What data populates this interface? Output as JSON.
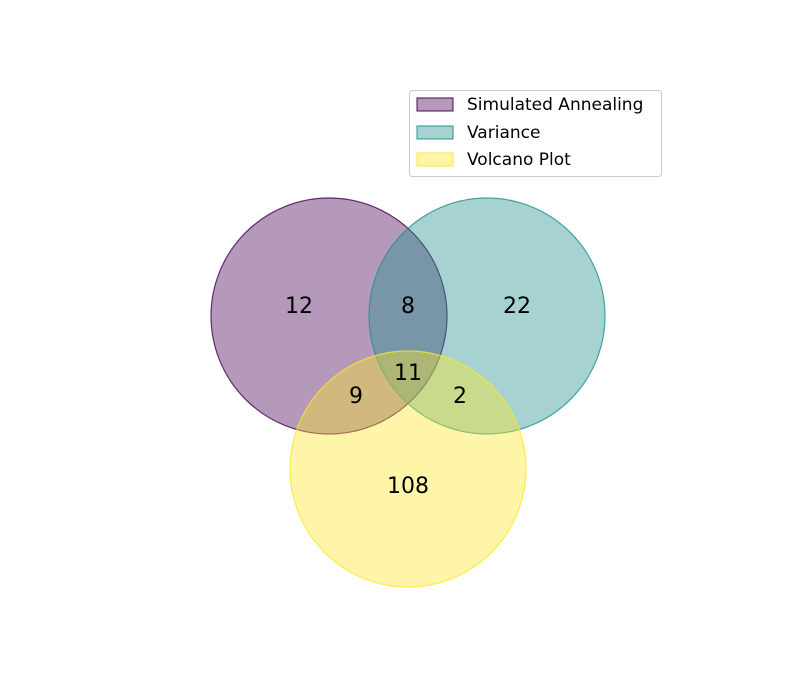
{
  "chart_data": {
    "type": "venn",
    "sets": [
      {
        "name": "Simulated Annealing",
        "color": "#440154",
        "fill_opacity": 0.4
      },
      {
        "name": "Variance",
        "color": "#21918c",
        "fill_opacity": 0.4
      },
      {
        "name": "Volcano Plot",
        "color": "#fde725",
        "fill_opacity": 0.4
      }
    ],
    "regions": [
      {
        "sets": [
          "Simulated Annealing"
        ],
        "value": "12"
      },
      {
        "sets": [
          "Variance"
        ],
        "value": "22"
      },
      {
        "sets": [
          "Volcano Plot"
        ],
        "value": "108"
      },
      {
        "sets": [
          "Simulated Annealing",
          "Variance"
        ],
        "value": "8"
      },
      {
        "sets": [
          "Simulated Annealing",
          "Volcano Plot"
        ],
        "value": "9"
      },
      {
        "sets": [
          "Variance",
          "Volcano Plot"
        ],
        "value": "2"
      },
      {
        "sets": [
          "Simulated Annealing",
          "Variance",
          "Volcano Plot"
        ],
        "value": "11"
      }
    ],
    "legend_placement": "top-right"
  }
}
